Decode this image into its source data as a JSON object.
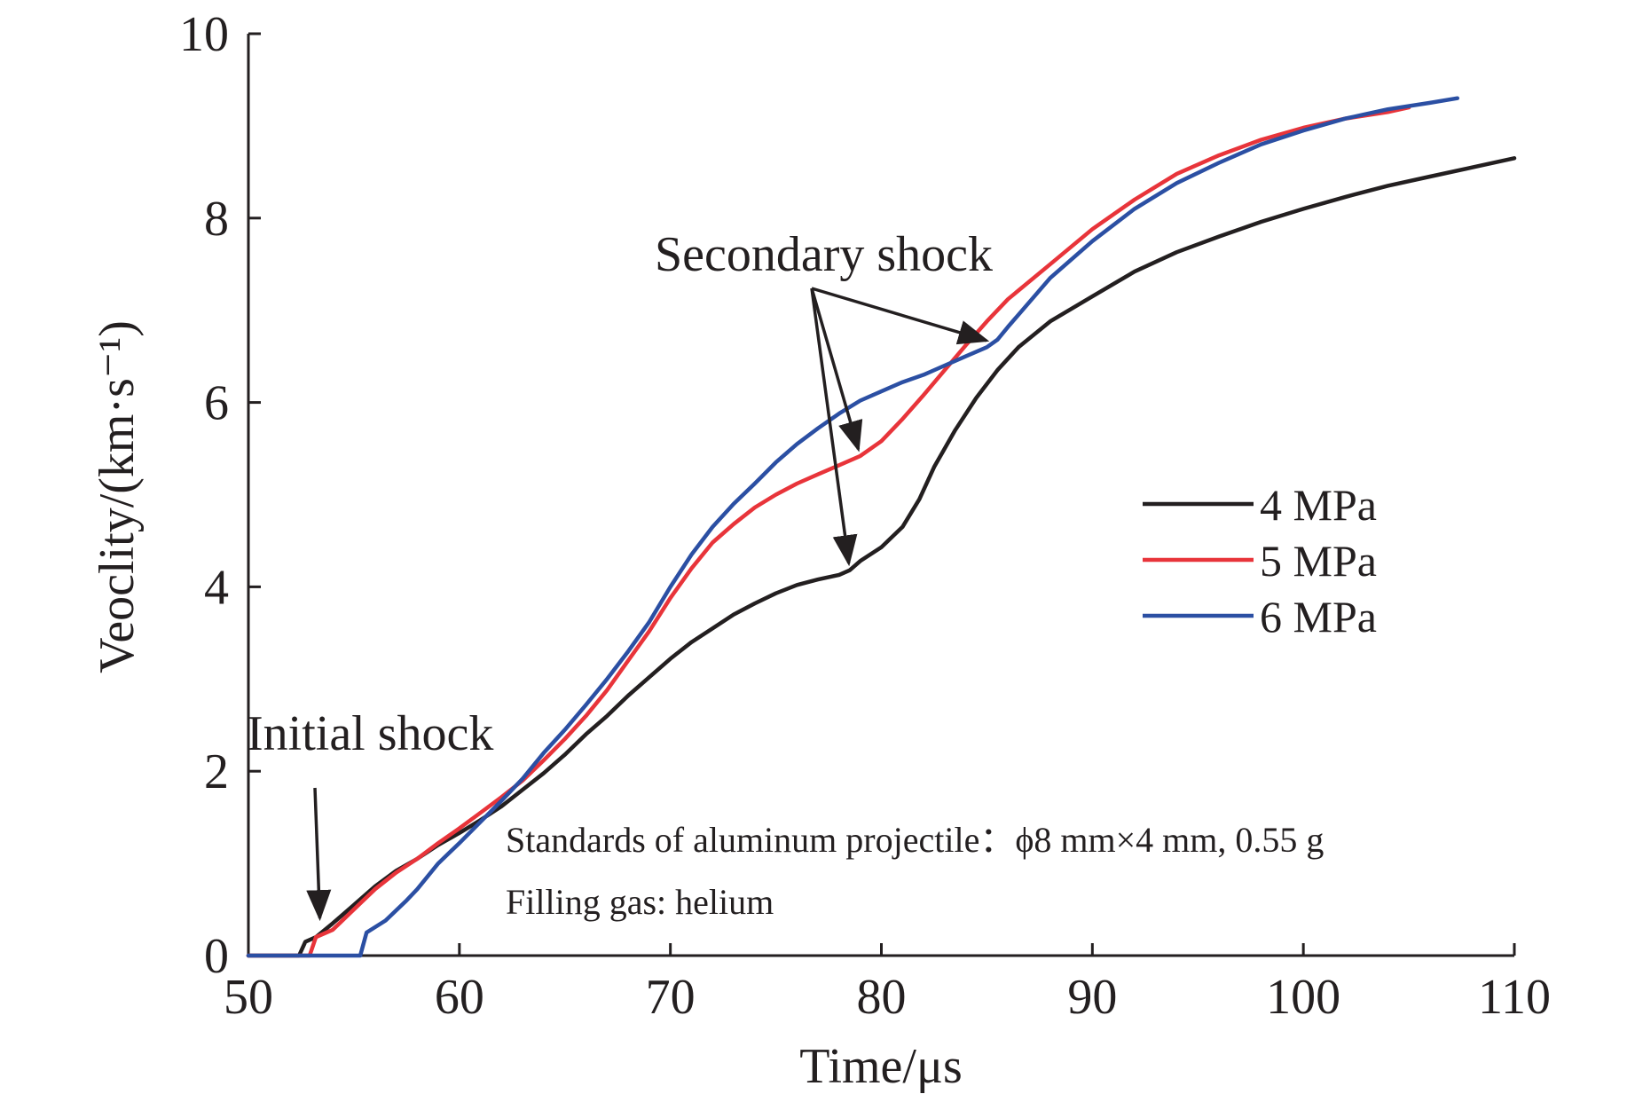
{
  "chart_data": {
    "type": "line",
    "title": "",
    "xlabel": "Time/μs",
    "ylabel": "Veoclity/(km·s⁻¹)",
    "xlim": [
      50,
      110
    ],
    "ylim": [
      0,
      10
    ],
    "xticks": [
      50,
      60,
      70,
      80,
      90,
      100,
      110
    ],
    "yticks": [
      0,
      2,
      4,
      6,
      8,
      10
    ],
    "grid": false,
    "legend_position": "right",
    "series": [
      {
        "name": "4 MPa",
        "color": "#231f20",
        "points": [
          [
            50,
            0
          ],
          [
            52.4,
            0
          ],
          [
            52.7,
            0.15
          ],
          [
            53.2,
            0.2
          ],
          [
            54,
            0.35
          ],
          [
            55,
            0.55
          ],
          [
            56,
            0.75
          ],
          [
            57,
            0.92
          ],
          [
            58,
            1.05
          ],
          [
            59,
            1.2
          ],
          [
            60,
            1.33
          ],
          [
            61,
            1.47
          ],
          [
            62,
            1.62
          ],
          [
            63,
            1.8
          ],
          [
            64,
            1.98
          ],
          [
            65,
            2.18
          ],
          [
            66,
            2.4
          ],
          [
            67,
            2.6
          ],
          [
            68,
            2.82
          ],
          [
            69,
            3.02
          ],
          [
            70,
            3.22
          ],
          [
            71,
            3.4
          ],
          [
            72,
            3.55
          ],
          [
            73,
            3.7
          ],
          [
            74,
            3.82
          ],
          [
            75,
            3.93
          ],
          [
            76,
            4.02
          ],
          [
            77,
            4.08
          ],
          [
            78,
            4.13
          ],
          [
            78.5,
            4.18
          ],
          [
            79,
            4.28
          ],
          [
            80,
            4.43
          ],
          [
            81,
            4.65
          ],
          [
            81.8,
            4.95
          ],
          [
            82.5,
            5.3
          ],
          [
            83.5,
            5.7
          ],
          [
            84.5,
            6.05
          ],
          [
            85.5,
            6.35
          ],
          [
            86.5,
            6.6
          ],
          [
            88,
            6.88
          ],
          [
            90,
            7.15
          ],
          [
            92,
            7.42
          ],
          [
            94,
            7.63
          ],
          [
            96,
            7.8
          ],
          [
            98,
            7.96
          ],
          [
            100,
            8.1
          ],
          [
            102,
            8.23
          ],
          [
            104,
            8.35
          ],
          [
            106,
            8.45
          ],
          [
            108,
            8.55
          ],
          [
            110,
            8.65
          ]
        ]
      },
      {
        "name": "5 MPa",
        "color": "#e8343a",
        "points": [
          [
            50,
            0
          ],
          [
            52.9,
            0
          ],
          [
            53.2,
            0.2
          ],
          [
            54,
            0.28
          ],
          [
            55,
            0.5
          ],
          [
            56,
            0.72
          ],
          [
            57,
            0.9
          ],
          [
            58,
            1.05
          ],
          [
            59,
            1.22
          ],
          [
            60,
            1.38
          ],
          [
            61,
            1.55
          ],
          [
            62,
            1.72
          ],
          [
            63,
            1.9
          ],
          [
            64,
            2.12
          ],
          [
            65,
            2.35
          ],
          [
            66,
            2.6
          ],
          [
            67,
            2.88
          ],
          [
            68,
            3.2
          ],
          [
            69,
            3.52
          ],
          [
            70,
            3.88
          ],
          [
            71,
            4.2
          ],
          [
            72,
            4.48
          ],
          [
            73,
            4.68
          ],
          [
            74,
            4.86
          ],
          [
            75,
            5
          ],
          [
            76,
            5.12
          ],
          [
            77,
            5.22
          ],
          [
            78,
            5.32
          ],
          [
            79,
            5.42
          ],
          [
            80,
            5.58
          ],
          [
            81,
            5.82
          ],
          [
            82,
            6.08
          ],
          [
            83,
            6.35
          ],
          [
            84,
            6.62
          ],
          [
            85,
            6.88
          ],
          [
            86,
            7.12
          ],
          [
            88,
            7.5
          ],
          [
            90,
            7.88
          ],
          [
            92,
            8.2
          ],
          [
            94,
            8.48
          ],
          [
            96,
            8.68
          ],
          [
            98,
            8.85
          ],
          [
            100,
            8.98
          ],
          [
            102,
            9.08
          ],
          [
            104,
            9.15
          ],
          [
            105,
            9.2
          ]
        ]
      },
      {
        "name": "6 MPa",
        "color": "#2b4fa3",
        "points": [
          [
            50,
            0
          ],
          [
            55.3,
            0
          ],
          [
            55.6,
            0.25
          ],
          [
            56.5,
            0.38
          ],
          [
            57.5,
            0.6
          ],
          [
            58,
            0.72
          ],
          [
            59,
            1
          ],
          [
            60,
            1.22
          ],
          [
            61,
            1.45
          ],
          [
            62,
            1.68
          ],
          [
            63,
            1.92
          ],
          [
            64,
            2.2
          ],
          [
            65,
            2.45
          ],
          [
            66,
            2.72
          ],
          [
            67,
            3
          ],
          [
            68,
            3.3
          ],
          [
            69,
            3.62
          ],
          [
            70,
            4
          ],
          [
            71,
            4.35
          ],
          [
            72,
            4.65
          ],
          [
            73,
            4.9
          ],
          [
            74,
            5.12
          ],
          [
            75,
            5.35
          ],
          [
            76,
            5.55
          ],
          [
            77,
            5.72
          ],
          [
            78,
            5.88
          ],
          [
            79,
            6.02
          ],
          [
            80,
            6.12
          ],
          [
            81,
            6.22
          ],
          [
            82,
            6.3
          ],
          [
            83,
            6.4
          ],
          [
            84,
            6.5
          ],
          [
            85,
            6.6
          ],
          [
            85.5,
            6.68
          ],
          [
            86,
            6.82
          ],
          [
            88,
            7.35
          ],
          [
            90,
            7.75
          ],
          [
            92,
            8.1
          ],
          [
            94,
            8.38
          ],
          [
            96,
            8.6
          ],
          [
            98,
            8.8
          ],
          [
            100,
            8.95
          ],
          [
            102,
            9.08
          ],
          [
            104,
            9.18
          ],
          [
            106,
            9.25
          ],
          [
            107.3,
            9.3
          ]
        ]
      }
    ],
    "annotations": {
      "initial_shock": "Initial shock",
      "secondary_shock": "Secondary shock",
      "note_line1": "Standards of aluminum projectile：ϕ8 mm×4 mm, 0.55 g",
      "note_line2": "Filling gas: helium"
    },
    "arrow_targets": {
      "initial_shock": [
        53.3,
        0.35
      ],
      "secondary_shock": [
        [
          78.5,
          4.18
        ],
        [
          79,
          5.42
        ],
        [
          85.3,
          6.65
        ]
      ]
    }
  }
}
